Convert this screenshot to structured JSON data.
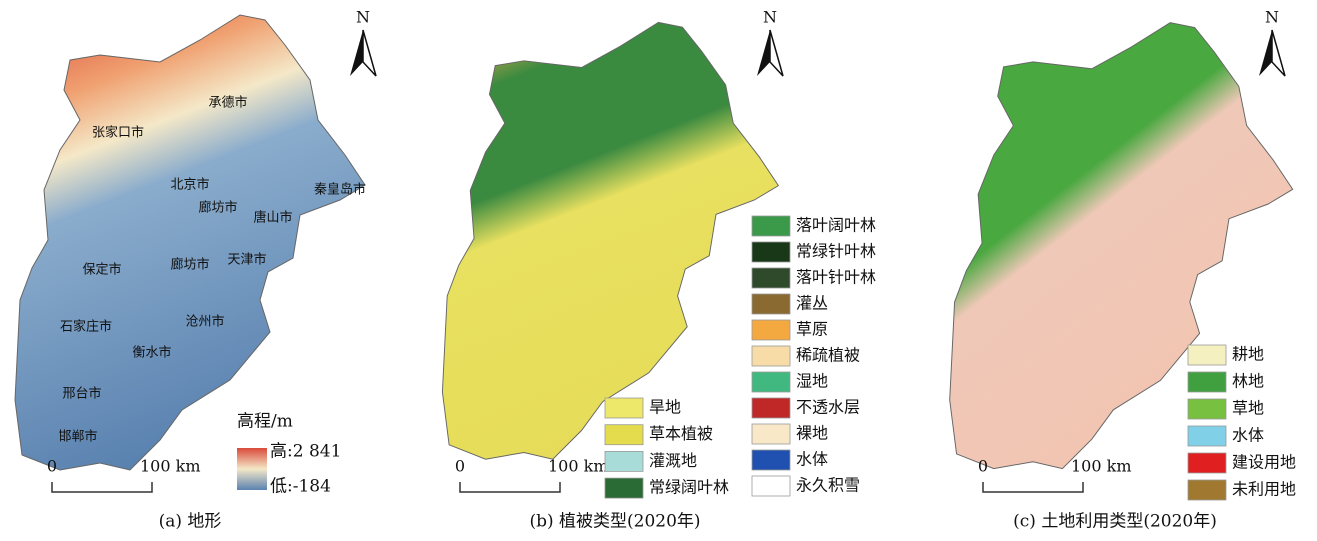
{
  "north": "N",
  "scale_bar": {
    "start": "0",
    "end": "100 km"
  },
  "panels": [
    {
      "caption": "(a)  地形",
      "cities": [
        "张家口市",
        "承德市",
        "北京市",
        "廊坊市",
        "秦皇岛市",
        "唐山市",
        "保定市",
        "廊坊市",
        "天津市",
        "石家庄市",
        "沧州市",
        "衡水市",
        "邢台市",
        "邯郸市"
      ],
      "legend_title": "高程/m",
      "legend_high": "高:2 841",
      "legend_low": "低:-184"
    },
    {
      "caption": "(b)  植被类型(2020年)",
      "legend_left": [
        {
          "label": "旱地",
          "color": "#eee86a"
        },
        {
          "label": "草本植被",
          "color": "#e4dc4c"
        },
        {
          "label": "灌溉地",
          "color": "#a8dcd8"
        },
        {
          "label": "常绿阔叶林",
          "color": "#2a6a34"
        }
      ],
      "legend_right": [
        {
          "label": "落叶阔叶林",
          "color": "#3a9a4a"
        },
        {
          "label": "常绿针叶林",
          "color": "#183818"
        },
        {
          "label": "落叶针叶林",
          "color": "#2e4a2a"
        },
        {
          "label": "灌丛",
          "color": "#8a6a30"
        },
        {
          "label": "草原",
          "color": "#f4a840"
        },
        {
          "label": "稀疏植被",
          "color": "#f8dca8"
        },
        {
          "label": "湿地",
          "color": "#40b880"
        },
        {
          "label": "不透水层",
          "color": "#c02828"
        },
        {
          "label": "裸地",
          "color": "#f8e8c8"
        },
        {
          "label": "水体",
          "color": "#2050b0"
        },
        {
          "label": "永久积雪",
          "color": "#ffffff"
        }
      ]
    },
    {
      "caption": "(c)  土地利用类型(2020年)",
      "legend": [
        {
          "label": "耕地",
          "color": "#f4f0c0"
        },
        {
          "label": "林地",
          "color": "#40a040"
        },
        {
          "label": "草地",
          "color": "#78c040"
        },
        {
          "label": "水体",
          "color": "#80d0e8"
        },
        {
          "label": "建设用地",
          "color": "#e02020"
        },
        {
          "label": "未利用地",
          "color": "#a07830"
        }
      ]
    }
  ]
}
